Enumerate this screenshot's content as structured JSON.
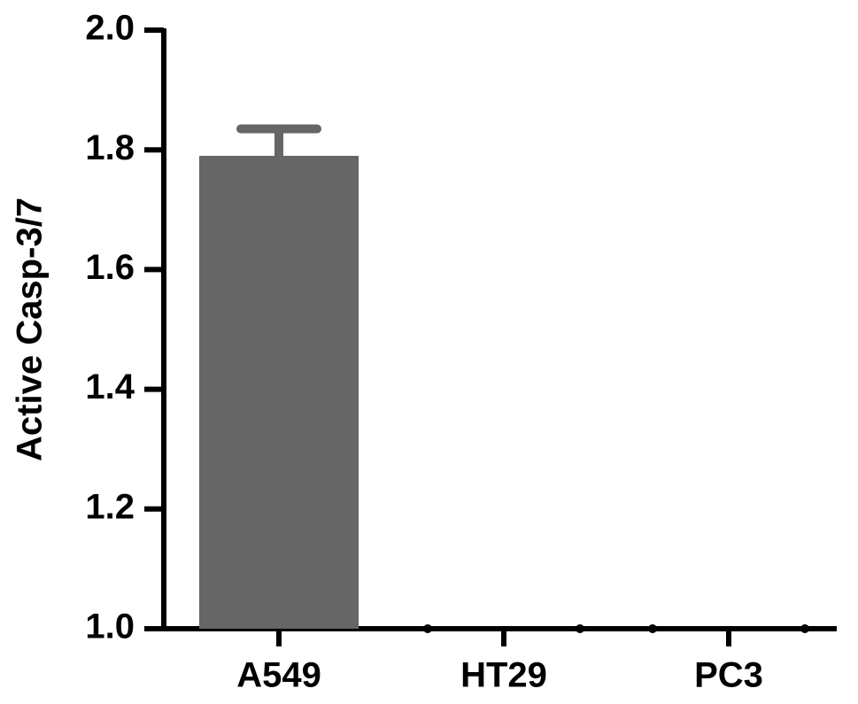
{
  "chart_data": {
    "type": "bar",
    "y_label": "Active Casp-3/7",
    "categories": [
      "A549",
      "HT29",
      "PC3"
    ],
    "values": [
      1.79,
      1.0,
      1.0
    ],
    "errors": [
      0.045,
      null,
      null
    ],
    "color": "#666666",
    "ylim": [
      1.0,
      2.0
    ],
    "yticks": [
      {
        "value": 1.0,
        "label": "1.0"
      },
      1.2,
      1.4,
      1.6,
      1.8,
      {
        "value": 2.0,
        "label": "2.0"
      }
    ],
    "grid": false
  }
}
